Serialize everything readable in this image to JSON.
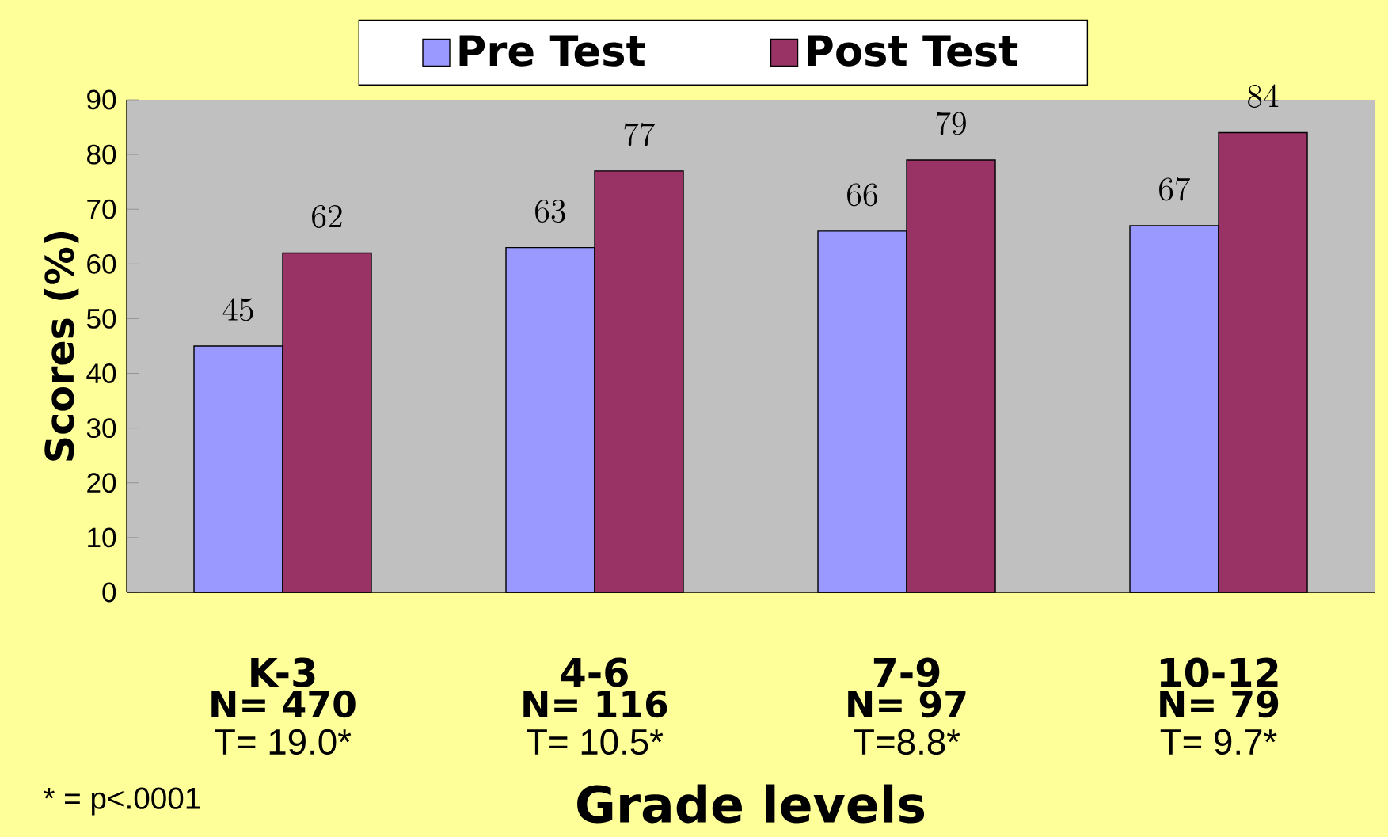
{
  "chart_data": {
    "type": "bar",
    "xlabel": "Grade levels",
    "ylabel": "Scores (%)",
    "categories": [
      "K-3",
      "4-6",
      "7-9",
      "10-12"
    ],
    "series": [
      {
        "name": "Pre Test",
        "color": "#9999ff",
        "values": [
          45,
          63,
          66,
          67
        ]
      },
      {
        "name": "Post Test",
        "color": "#993366",
        "values": [
          62,
          77,
          79,
          84
        ]
      }
    ],
    "ylim": [
      0,
      90
    ],
    "yticks": [
      0,
      10,
      20,
      30,
      40,
      50,
      60,
      70,
      80,
      90
    ],
    "data_labels": true,
    "legend": "top",
    "grid": false,
    "annotations": [
      "N= 470",
      "N= 116",
      "N= 97",
      "N= 79",
      "T= 19.0*",
      "T= 10.5*",
      "T=8.8*",
      "T= 9.7*",
      "* = p<.0001"
    ]
  }
}
